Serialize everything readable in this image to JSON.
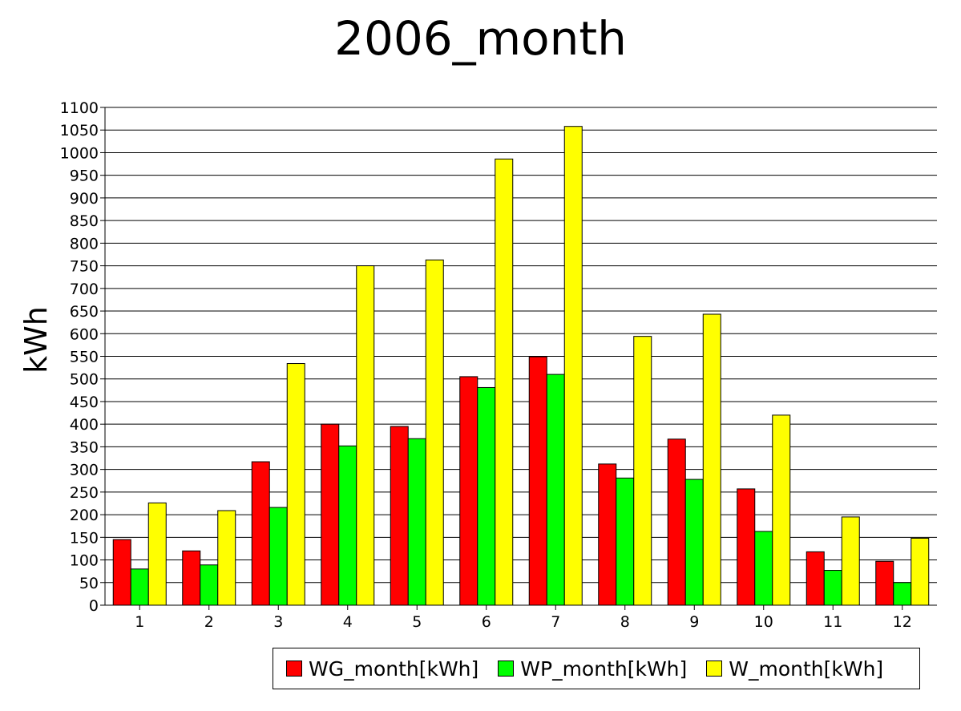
{
  "chart_data": {
    "type": "bar",
    "title": "2006_month",
    "xlabel": "",
    "ylabel": "kWh",
    "ylim": [
      0,
      1100
    ],
    "ytick_step": 50,
    "grid": true,
    "legend_position": "bottom-right",
    "categories": [
      "1",
      "2",
      "3",
      "4",
      "5",
      "6",
      "7",
      "8",
      "9",
      "10",
      "11",
      "12"
    ],
    "series": [
      {
        "name": "WG_month[kWh]",
        "color": "#ff0000",
        "values": [
          145,
          120,
          317,
          400,
          395,
          505,
          549,
          312,
          367,
          257,
          118,
          97
        ]
      },
      {
        "name": "WP_month[kWh]",
        "color": "#00ff00",
        "values": [
          80,
          89,
          216,
          352,
          368,
          481,
          510,
          281,
          278,
          163,
          77,
          50
        ]
      },
      {
        "name": "W_month[kWh]",
        "color": "#ffff00",
        "values": [
          226,
          209,
          534,
          750,
          763,
          986,
          1058,
          594,
          643,
          420,
          195,
          148
        ]
      }
    ]
  }
}
